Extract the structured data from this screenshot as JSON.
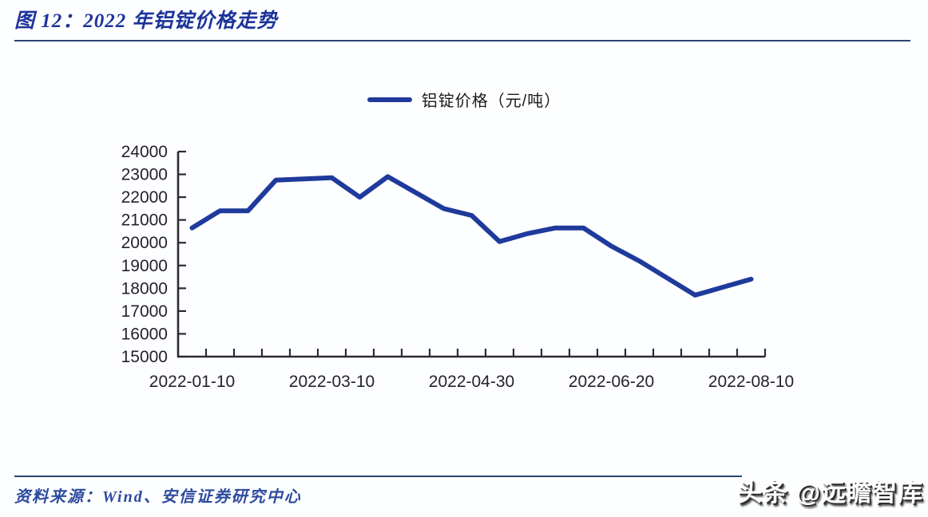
{
  "figure": {
    "title": "图 12：2022 年铝锭价格走势",
    "source_label": "资料来源：Wind、安信证券研究中心",
    "watermark": "头条 @远瞻智库"
  },
  "legend": {
    "label": "铝锭价格（元/吨）"
  },
  "chart_data": {
    "type": "line",
    "title": "2022 年铝锭价格走势",
    "xlabel": "",
    "ylabel": "铝锭价格（元/吨）",
    "ylim": [
      15000,
      24000
    ],
    "y_tick_step": 1000,
    "y_tick_labels": [
      "24000",
      "23000",
      "22000",
      "21000",
      "20000",
      "19000",
      "18000",
      "17000",
      "16000",
      "15000"
    ],
    "x_tick_labels": [
      "2022-01-10",
      "2022-03-10",
      "2022-04-30",
      "2022-06-20",
      "2022-08-10"
    ],
    "x_label_every": 5,
    "num_points": 21,
    "grid": false,
    "legend_position": "top-center",
    "tick_direction": "inside",
    "series": [
      {
        "name": "铝锭价格（元/吨）",
        "color": "#1e3a9c",
        "values": [
          20650,
          21400,
          21400,
          22750,
          22800,
          22850,
          22000,
          22900,
          22200,
          21500,
          21200,
          20050,
          20400,
          20650,
          20650,
          19850,
          19200,
          18450,
          17700,
          18050,
          18400
        ]
      }
    ]
  },
  "colors": {
    "line": "#1e3a9c",
    "title_text": "#1c339b",
    "rule": "#2b4576",
    "axis": "#2b2b33",
    "tick_text": "#23232b",
    "source_text": "#2d4b9e",
    "watermark_text": "#ffffff",
    "watermark_shadow": "#2e2e2e"
  }
}
